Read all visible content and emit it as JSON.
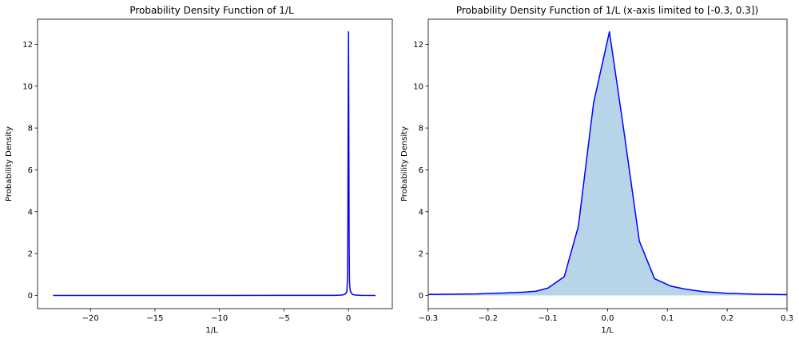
{
  "chart_data": [
    {
      "type": "line",
      "title": "Probability Density Function of 1/L",
      "xlabel": "1/L",
      "ylabel": "Probability Density",
      "xlim": [
        -24.1,
        3.4
      ],
      "ylim": [
        -0.63,
        13.2
      ],
      "xticks": [
        -20,
        -15,
        -10,
        -5,
        0
      ],
      "xtick_labels": [
        "−20",
        "−15",
        "−10",
        "−5",
        "0"
      ],
      "yticks": [
        0,
        2,
        4,
        6,
        8,
        10,
        12
      ],
      "ytick_labels": [
        "0",
        "2",
        "4",
        "6",
        "8",
        "10",
        "12"
      ],
      "grid": false,
      "legend": "none",
      "line_color": "#0000ff",
      "series": [
        {
          "x": [
            -22.9,
            -15,
            -10,
            -5,
            -1,
            -0.5,
            -0.3,
            -0.2,
            -0.12,
            -0.07,
            -0.045,
            -0.02,
            0.004,
            0.03,
            0.055,
            0.08,
            0.1,
            0.15,
            0.3,
            0.5,
            1,
            2.1
          ],
          "y": [
            0.0,
            0.0,
            0.001,
            0.003,
            0.005,
            0.02,
            0.05,
            0.1,
            0.2,
            0.9,
            3.3,
            9.2,
            12.6,
            8.0,
            2.6,
            0.8,
            0.45,
            0.2,
            0.05,
            0.02,
            0.005,
            0.0
          ]
        }
      ]
    },
    {
      "type": "area",
      "title": "Probability Density Function of 1/L (x-axis limited to [-0.3, 0.3])",
      "xlabel": "1/L",
      "ylabel": "Probability Density",
      "xlim": [
        -0.3,
        0.3
      ],
      "ylim": [
        -0.63,
        13.2
      ],
      "xticks": [
        -0.3,
        -0.2,
        -0.1,
        0.0,
        0.1,
        0.2,
        0.3
      ],
      "xtick_labels": [
        "−0.3",
        "−0.2",
        "−0.1",
        "0.0",
        "0.1",
        "0.2",
        "0.3"
      ],
      "yticks": [
        0,
        2,
        4,
        6,
        8,
        10,
        12
      ],
      "ytick_labels": [
        "0",
        "2",
        "4",
        "6",
        "8",
        "10",
        "12"
      ],
      "grid": false,
      "legend": "none",
      "line_color": "#0000ff",
      "fill_color": "#b8d4e9",
      "series": [
        {
          "x": [
            -0.3,
            -0.22,
            -0.17,
            -0.14,
            -0.12,
            -0.1,
            -0.0725,
            -0.049,
            -0.0235,
            0.003,
            0.0265,
            0.053,
            0.0785,
            0.105,
            0.13,
            0.16,
            0.2,
            0.25,
            0.3
          ],
          "y": [
            0.05,
            0.07,
            0.12,
            0.16,
            0.2,
            0.35,
            0.9,
            3.3,
            9.2,
            12.6,
            8.0,
            2.6,
            0.8,
            0.45,
            0.3,
            0.18,
            0.1,
            0.06,
            0.04
          ]
        }
      ]
    }
  ]
}
